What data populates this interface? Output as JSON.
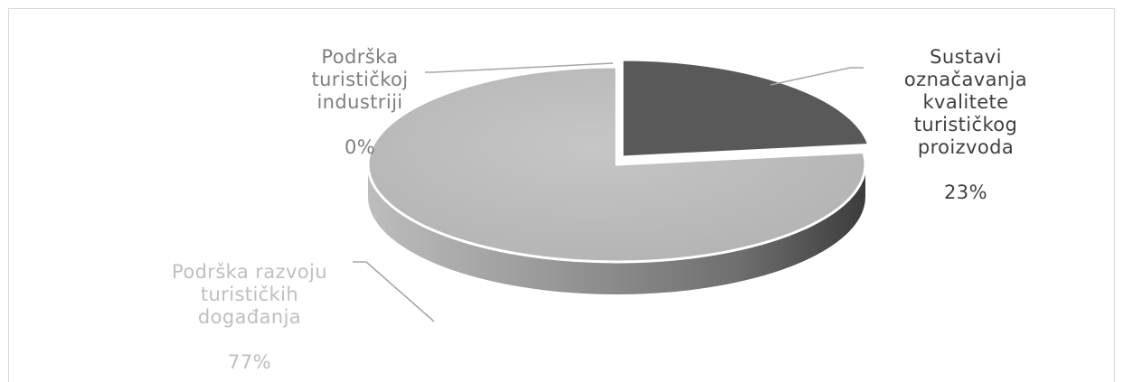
{
  "chart_data": {
    "type": "pie",
    "title": "",
    "slices": [
      {
        "name": "Sustavi označavanja kvalitete turističkog proizvoda",
        "value": 23,
        "pct_label": "23%",
        "color": "#595959"
      },
      {
        "name": "Podrška razvoju turističkih događanja",
        "value": 77,
        "pct_label": "77%",
        "color": "#bfbfbf"
      },
      {
        "name": "Podrška turističkoj industriji",
        "value": 0,
        "pct_label": "0%",
        "color": "#ffffff"
      }
    ],
    "labels": {
      "s0": "Sustavi\noznačavanja\nkvalitete\nturističkog\nproizvoda",
      "s1": "Podrška razvoju\nturističkih\ndogađanja",
      "s2": "Podrška\nturističkoj\nindustriji"
    },
    "label_colors": {
      "s0": "#404040",
      "s1": "#bfbfbf",
      "s2": "#7f7f7f"
    },
    "style": "3d",
    "legend": "none"
  }
}
